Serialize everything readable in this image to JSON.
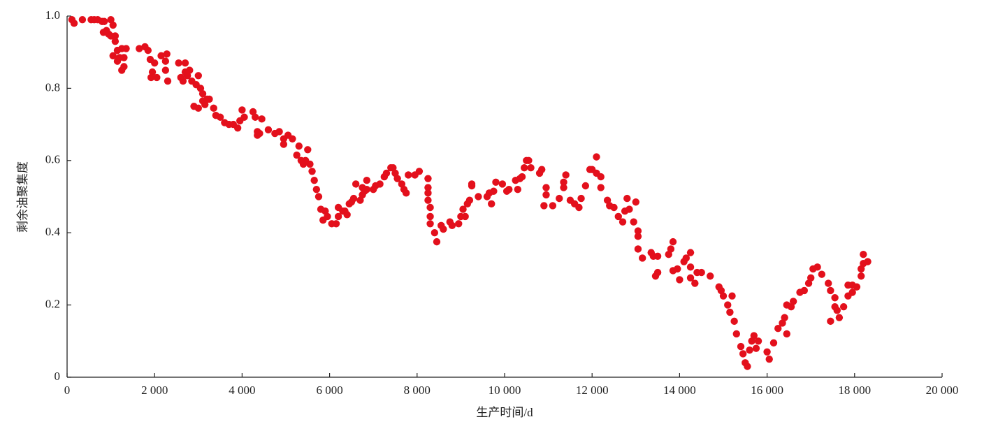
{
  "chart_data": {
    "type": "scatter",
    "color": "#e3101c",
    "x_label": "生产时间/d",
    "y_label": "剩余油聚集度",
    "xlim": [
      0,
      20000
    ],
    "xticks": [
      0,
      {
        "value": 2000,
        "label": "2 000"
      },
      {
        "value": 4000,
        "label": "4 000"
      },
      {
        "value": 6000,
        "label": "6 000"
      },
      {
        "value": 8000,
        "label": "8 000"
      },
      {
        "value": 10000,
        "label": "10 000"
      },
      {
        "value": 12000,
        "label": "12 000"
      },
      {
        "value": 14000,
        "label": "14 000"
      },
      {
        "value": 16000,
        "label": "16 000"
      },
      {
        "value": 18000,
        "label": "18 000"
      },
      {
        "value": 20000,
        "label": "20 000"
      }
    ],
    "ylim": [
      0,
      1
    ],
    "yticks": [
      0,
      0.2,
      0.4,
      0.6,
      0.8,
      {
        "value": 1,
        "label": "1.0"
      }
    ],
    "x": [
      110,
      160,
      350,
      550,
      620,
      700,
      800,
      850,
      830,
      900,
      950,
      1000,
      1050,
      1000,
      1100,
      1050,
      1100,
      1150,
      1150,
      1200,
      1250,
      1300,
      1300,
      1350,
      1250,
      1650,
      1780,
      1850,
      1900,
      1950,
      1920,
      2000,
      2050,
      2150,
      2250,
      2280,
      2250,
      2300,
      2550,
      2600,
      2650,
      2700,
      2700,
      2750,
      2800,
      2850,
      2900,
      2950,
      3000,
      3000,
      3050,
      3100,
      3100,
      3150,
      3200,
      3250,
      3350,
      3400,
      3500,
      3600,
      3700,
      3800,
      3900,
      3950,
      4000,
      4050,
      4250,
      4300,
      4350,
      4350,
      4450,
      4400,
      4600,
      4750,
      4850,
      4950,
      4950,
      5050,
      5150,
      5250,
      5300,
      5350,
      5400,
      5450,
      5500,
      5550,
      5600,
      5650,
      5700,
      5750,
      5800,
      5850,
      5900,
      5950,
      6050,
      6150,
      6200,
      6200,
      6300,
      6350,
      6400,
      6450,
      6500,
      6550,
      6600,
      6700,
      6750,
      6750,
      6800,
      6850,
      6850,
      7000,
      7050,
      7150,
      7250,
      7300,
      7400,
      7450,
      7500,
      7550,
      7650,
      7700,
      7750,
      7800,
      7950,
      8050,
      8250,
      8250,
      8250,
      8250,
      8300,
      8300,
      8300,
      8400,
      8450,
      8550,
      8600,
      8750,
      8800,
      8950,
      9000,
      9050,
      9100,
      9150,
      9200,
      9250,
      9250,
      9400,
      9600,
      9650,
      9700,
      9750,
      9800,
      9950,
      10050,
      10100,
      10250,
      10300,
      10350,
      10400,
      10450,
      10500,
      10600,
      10550,
      10800,
      10850,
      10900,
      10950,
      10950,
      11100,
      11250,
      11350,
      11350,
      11400,
      11500,
      11600,
      11700,
      11750,
      11850,
      11950,
      12000,
      12100,
      12100,
      12200,
      12200,
      12350,
      12400,
      12500,
      12600,
      12700,
      12750,
      12800,
      12850,
      12950,
      13000,
      13050,
      13050,
      13050,
      13150,
      13350,
      13400,
      13450,
      13500,
      13500,
      13750,
      13800,
      13850,
      13850,
      13950,
      14000,
      14100,
      14150,
      14250,
      14250,
      14250,
      14350,
      14400,
      14500,
      14700,
      14900,
      14950,
      15000,
      15100,
      15150,
      15200,
      15250,
      15300,
      15400,
      15450,
      15500,
      15550,
      15600,
      15650,
      15700,
      15750,
      15800,
      16000,
      16050,
      16150,
      16250,
      16350,
      16400,
      16450,
      16450,
      16550,
      16600,
      16750,
      16850,
      16950,
      17000,
      17050,
      17150,
      17250,
      17400,
      17450,
      17450,
      17550,
      17550,
      17600,
      17650,
      17750,
      17850,
      17850,
      17950,
      17950,
      18050,
      18150,
      18150,
      18200,
      18200,
      18300
    ],
    "values": [
      0.99,
      0.98,
      0.99,
      0.99,
      0.99,
      0.99,
      0.985,
      0.985,
      0.955,
      0.96,
      0.95,
      0.99,
      0.975,
      0.945,
      0.945,
      0.89,
      0.93,
      0.905,
      0.875,
      0.885,
      0.85,
      0.885,
      0.86,
      0.91,
      0.91,
      0.91,
      0.915,
      0.905,
      0.88,
      0.845,
      0.83,
      0.87,
      0.83,
      0.89,
      0.85,
      0.895,
      0.875,
      0.82,
      0.87,
      0.83,
      0.82,
      0.87,
      0.845,
      0.835,
      0.85,
      0.82,
      0.75,
      0.81,
      0.835,
      0.745,
      0.8,
      0.785,
      0.765,
      0.755,
      0.77,
      0.77,
      0.745,
      0.725,
      0.72,
      0.705,
      0.7,
      0.7,
      0.69,
      0.71,
      0.74,
      0.72,
      0.735,
      0.72,
      0.68,
      0.67,
      0.715,
      0.675,
      0.685,
      0.675,
      0.68,
      0.66,
      0.645,
      0.67,
      0.66,
      0.615,
      0.64,
      0.6,
      0.59,
      0.6,
      0.63,
      0.59,
      0.57,
      0.545,
      0.52,
      0.5,
      0.465,
      0.435,
      0.46,
      0.445,
      0.425,
      0.425,
      0.445,
      0.47,
      0.46,
      0.46,
      0.45,
      0.48,
      0.485,
      0.495,
      0.535,
      0.49,
      0.505,
      0.525,
      0.515,
      0.545,
      0.52,
      0.52,
      0.53,
      0.535,
      0.555,
      0.565,
      0.58,
      0.58,
      0.565,
      0.55,
      0.535,
      0.52,
      0.51,
      0.56,
      0.56,
      0.57,
      0.55,
      0.525,
      0.51,
      0.49,
      0.47,
      0.445,
      0.425,
      0.4,
      0.375,
      0.42,
      0.41,
      0.43,
      0.42,
      0.425,
      0.445,
      0.465,
      0.445,
      0.48,
      0.49,
      0.53,
      0.535,
      0.5,
      0.5,
      0.51,
      0.48,
      0.515,
      0.54,
      0.535,
      0.515,
      0.52,
      0.545,
      0.52,
      0.55,
      0.555,
      0.58,
      0.6,
      0.58,
      0.6,
      0.565,
      0.575,
      0.475,
      0.505,
      0.525,
      0.475,
      0.495,
      0.525,
      0.54,
      0.56,
      0.49,
      0.48,
      0.47,
      0.495,
      0.53,
      0.575,
      0.575,
      0.61,
      0.565,
      0.555,
      0.525,
      0.49,
      0.475,
      0.47,
      0.445,
      0.43,
      0.46,
      0.495,
      0.465,
      0.43,
      0.485,
      0.405,
      0.39,
      0.355,
      0.33,
      0.345,
      0.335,
      0.28,
      0.29,
      0.335,
      0.34,
      0.355,
      0.375,
      0.295,
      0.3,
      0.27,
      0.32,
      0.33,
      0.345,
      0.305,
      0.275,
      0.26,
      0.29,
      0.29,
      0.28,
      0.25,
      0.24,
      0.225,
      0.2,
      0.18,
      0.225,
      0.155,
      0.12,
      0.085,
      0.065,
      0.04,
      0.03,
      0.075,
      0.1,
      0.115,
      0.08,
      0.1,
      0.07,
      0.05,
      0.095,
      0.135,
      0.15,
      0.165,
      0.12,
      0.2,
      0.195,
      0.21,
      0.235,
      0.24,
      0.26,
      0.275,
      0.3,
      0.305,
      0.285,
      0.26,
      0.155,
      0.24,
      0.22,
      0.195,
      0.185,
      0.165,
      0.195,
      0.225,
      0.255,
      0.235,
      0.255,
      0.25,
      0.28,
      0.3,
      0.315,
      0.34,
      0.32
    ]
  }
}
